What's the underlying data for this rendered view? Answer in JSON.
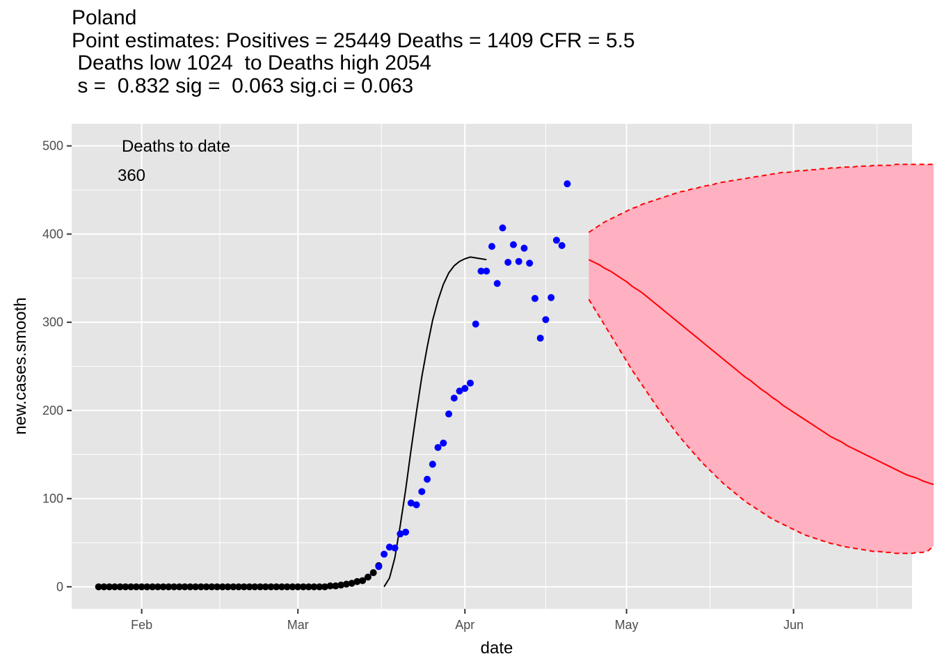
{
  "chart_data": {
    "type": "line",
    "title": "Poland",
    "subtitle_lines": [
      "Point estimates: Positives = 25449 Deaths = 1409 CFR = 5.5",
      " Deaths low 1024  to Deaths high 2054",
      " s =  0.832 sig =  0.063 sig.ci = 0.063"
    ],
    "xlabel": "date",
    "ylabel": "new.cases.smooth",
    "x_ticks": [
      {
        "label": "Feb",
        "date": "2020-02-01"
      },
      {
        "label": "Mar",
        "date": "2020-03-01"
      },
      {
        "label": "Apr",
        "date": "2020-04-01"
      },
      {
        "label": "May",
        "date": "2020-05-01"
      },
      {
        "label": "Jun",
        "date": "2020-06-01"
      }
    ],
    "y_ticks": [
      0,
      100,
      200,
      300,
      400,
      500
    ],
    "xlim": [
      "2020-01-19",
      "2020-06-23"
    ],
    "ylim": [
      -25,
      525
    ],
    "grid": true,
    "annotation": {
      "label": "Deaths to date",
      "value": "360"
    },
    "colors": {
      "panel": "#e5e5e5",
      "grid": "#ffffff",
      "early_points": "#000000",
      "observed_points": "#0000ff",
      "fit_line": "#000000",
      "projection": "#ff0000",
      "band_fill": "#ffb0c1"
    },
    "series": [
      {
        "kind": "early-points",
        "dates_start": "2020-01-24",
        "values": [
          0,
          0,
          0,
          0,
          0,
          0,
          0,
          0,
          0,
          0,
          0,
          0,
          0,
          0,
          0,
          0,
          0,
          0,
          0,
          0,
          0,
          0,
          0,
          0,
          0,
          0,
          0,
          0,
          0,
          0,
          0,
          0,
          0,
          0,
          0,
          0,
          0,
          0,
          0,
          0,
          0,
          0,
          0,
          1,
          1,
          2,
          3,
          4,
          6,
          7,
          11,
          16,
          24
        ]
      },
      {
        "kind": "observed-points",
        "dates_start": "2020-03-16",
        "values": [
          23,
          37,
          45,
          44,
          60,
          62,
          95,
          93,
          108,
          122,
          139,
          158,
          163,
          196,
          214,
          222,
          225,
          231,
          298,
          358,
          358,
          386,
          344,
          407,
          368,
          388,
          369,
          384,
          367,
          327,
          282,
          303,
          328,
          393,
          387,
          457
        ]
      },
      {
        "kind": "fit-line",
        "dates_start": "2020-03-17",
        "values": [
          0,
          10,
          33,
          70,
          110,
          155,
          198,
          238,
          272,
          302,
          325,
          343,
          356,
          364,
          369,
          372,
          374,
          373,
          372,
          371
        ]
      },
      {
        "kind": "projection-center",
        "dates_start": "2020-04-24",
        "values": [
          371,
          368,
          365,
          361,
          358,
          354,
          350,
          346,
          341,
          337,
          333,
          328,
          323,
          318,
          313,
          308,
          303,
          298,
          293,
          288,
          283,
          278,
          273,
          268,
          263,
          258,
          253,
          248,
          243,
          238,
          234,
          229,
          224,
          220,
          215,
          211,
          206,
          202,
          198,
          194,
          190,
          186,
          182,
          178,
          174,
          170,
          167,
          164,
          160,
          157,
          154,
          151,
          148,
          145,
          142,
          139,
          136,
          133,
          130,
          127,
          125,
          123,
          120,
          118,
          116
        ]
      },
      {
        "kind": "projection-upper",
        "dates_start": "2020-04-24",
        "values": [
          402,
          406,
          410,
          414,
          417,
          420,
          423,
          426,
          429,
          431,
          434,
          436,
          438,
          440,
          442,
          444,
          446,
          448,
          449,
          451,
          452,
          454,
          455,
          456,
          458,
          459,
          460,
          461,
          462,
          463,
          464,
          465,
          466,
          467,
          468,
          469,
          470,
          470,
          471,
          472,
          472,
          473,
          473,
          474,
          474,
          475,
          475,
          476,
          476,
          476,
          477,
          477,
          477,
          478,
          478,
          478,
          478,
          479,
          479,
          479,
          479,
          479,
          479,
          479,
          479
        ]
      },
      {
        "kind": "projection-lower",
        "dates_start": "2020-04-24",
        "values": [
          326,
          316,
          306,
          296,
          286,
          276,
          266,
          256,
          246,
          237,
          228,
          219,
          210,
          201,
          193,
          185,
          177,
          169,
          162,
          155,
          148,
          141,
          135,
          129,
          123,
          117,
          112,
          107,
          102,
          97,
          93,
          89,
          85,
          81,
          77,
          74,
          71,
          68,
          65,
          62,
          59,
          57,
          55,
          53,
          51,
          49,
          48,
          46,
          45,
          44,
          43,
          42,
          41,
          40,
          40,
          39,
          39,
          38,
          38,
          38,
          38,
          39,
          39,
          41,
          46
        ]
      }
    ]
  }
}
